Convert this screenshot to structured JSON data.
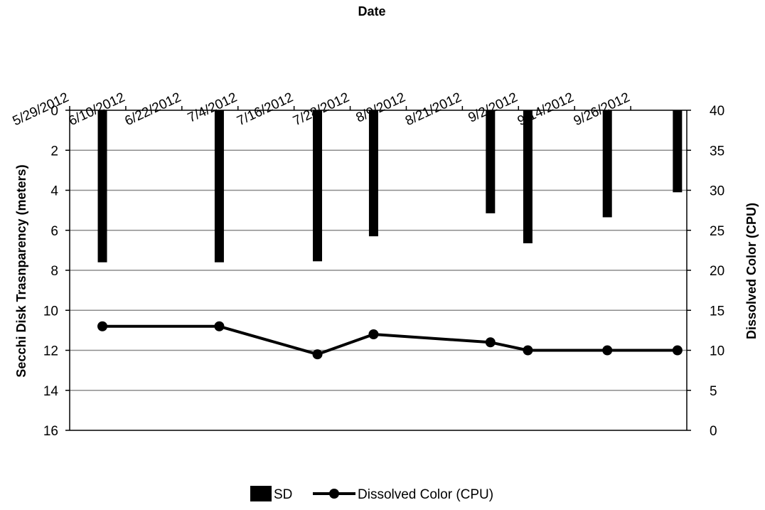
{
  "chart_data": {
    "type": "bar+line",
    "x_axis": {
      "title": "Date",
      "position": "top",
      "range": [
        "2012-05-29",
        "2012-10-08"
      ],
      "tick_labels": [
        "5/29/2012",
        "6/10/2012",
        "6/22/2012",
        "7/4/2012",
        "7/16/2012",
        "7/28/2012",
        "8/9/2012",
        "8/21/2012",
        "9/2/2012",
        "9/14/2012",
        "9/26/2012"
      ]
    },
    "y_left": {
      "title": "Secchi Disk Trasnparency (meters)",
      "range": [
        0,
        16
      ],
      "reversed": true,
      "tick_labels": [
        "0",
        "2",
        "4",
        "6",
        "8",
        "10",
        "12",
        "14",
        "16"
      ]
    },
    "y_right": {
      "title": "Dissolved Color (CPU)",
      "range": [
        0,
        40
      ],
      "tick_labels": [
        "0",
        "5",
        "10",
        "15",
        "20",
        "25",
        "30",
        "35",
        "40"
      ]
    },
    "grid": "horizontal",
    "legend_position": "bottom",
    "series": [
      {
        "name": "SD",
        "type": "bar",
        "axis": "left",
        "color": "#000000",
        "points": [
          {
            "date": "2012-06-05",
            "value": 7.6
          },
          {
            "date": "2012-06-30",
            "value": 7.6
          },
          {
            "date": "2012-07-21",
            "value": 7.55
          },
          {
            "date": "2012-08-02",
            "value": 6.3
          },
          {
            "date": "2012-08-27",
            "value": 5.15
          },
          {
            "date": "2012-09-04",
            "value": 6.65
          },
          {
            "date": "2012-09-21",
            "value": 5.35
          },
          {
            "date": "2012-10-06",
            "value": 4.1
          }
        ]
      },
      {
        "name": "Dissolved Color (CPU)",
        "type": "line",
        "axis": "right",
        "color": "#000000",
        "points": [
          {
            "date": "2012-06-05",
            "value": 13
          },
          {
            "date": "2012-06-30",
            "value": 13
          },
          {
            "date": "2012-07-21",
            "value": 9.5
          },
          {
            "date": "2012-08-02",
            "value": 12
          },
          {
            "date": "2012-08-27",
            "value": 11
          },
          {
            "date": "2012-09-04",
            "value": 10
          },
          {
            "date": "2012-09-21",
            "value": 10
          },
          {
            "date": "2012-10-06",
            "value": 10
          }
        ]
      }
    ]
  }
}
